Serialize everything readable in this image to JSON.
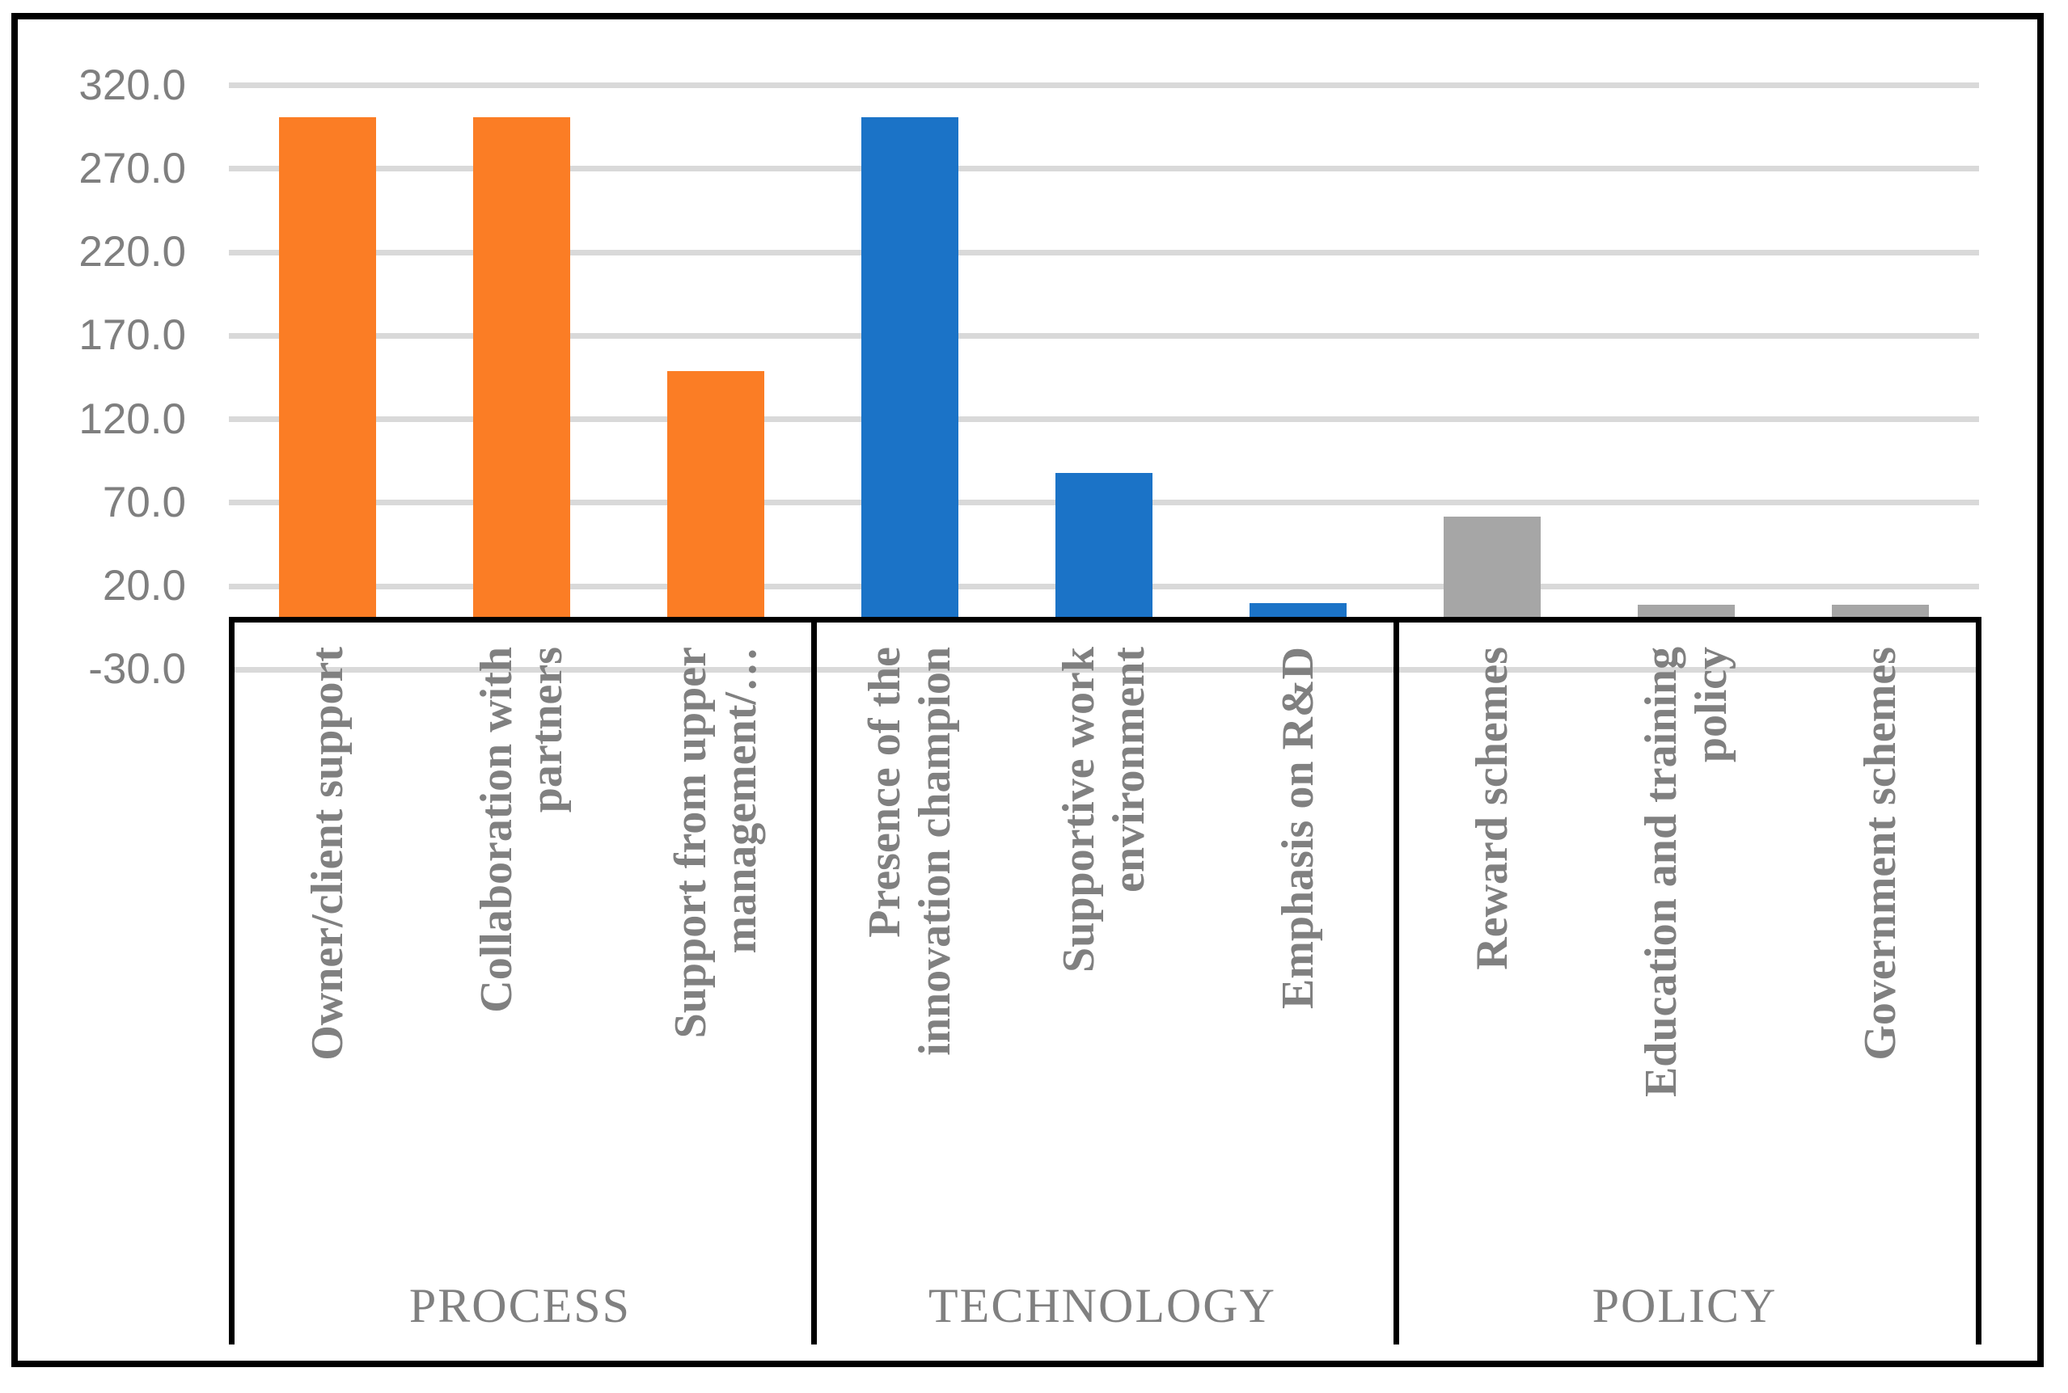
{
  "chart_data": {
    "type": "bar",
    "title": "",
    "xlabel": "",
    "ylabel": "",
    "grid": true,
    "legend": "none",
    "axis": {
      "min": -30,
      "max": 320,
      "step": 50,
      "tick_values": [
        320,
        270,
        220,
        170,
        120,
        70,
        20,
        -30
      ],
      "tick_labels": [
        "320.0",
        "270.0",
        "220.0",
        "170.0",
        "120.0",
        "70.0",
        "20.0",
        "-30.0"
      ]
    },
    "groups": [
      {
        "label": "PROCESS",
        "color": "#fb7d25",
        "items": [
          {
            "label": "Owner/client support",
            "lines": [
              "Owner/client support"
            ],
            "value": 301
          },
          {
            "label": "Collaboration with partners",
            "lines": [
              "Collaboration with",
              "partners"
            ],
            "value": 301
          },
          {
            "label": "Support from upper management/…",
            "lines": [
              "Support from upper",
              "management/…"
            ],
            "value": 149
          }
        ]
      },
      {
        "label": "TECHNOLOGY",
        "color": "#1b73c7",
        "items": [
          {
            "label": "Presence of the innovation champion",
            "lines": [
              "Presence of the",
              "innovation champion"
            ],
            "value": 301
          },
          {
            "label": "Supportive work environment",
            "lines": [
              "Supportive work",
              "environment"
            ],
            "value": 88
          },
          {
            "label": "Emphasis on R&D",
            "lines": [
              "Emphasis on R&D"
            ],
            "value": 10
          }
        ]
      },
      {
        "label": "POLICY",
        "color": "#a6a6a6",
        "items": [
          {
            "label": "Reward schemes",
            "lines": [
              "Reward schemes"
            ],
            "value": 62
          },
          {
            "label": "Education and training policy",
            "lines": [
              "Education and training",
              "policy"
            ],
            "value": 9
          },
          {
            "label": "Government schemes",
            "lines": [
              "Government schemes"
            ],
            "value": 9
          }
        ]
      }
    ],
    "colors": {
      "gridline": "#d9d9d9",
      "axis_text": "#7f7f7f",
      "label_text": "#808080",
      "box_border": "#000000",
      "background": "#ffffff"
    }
  }
}
